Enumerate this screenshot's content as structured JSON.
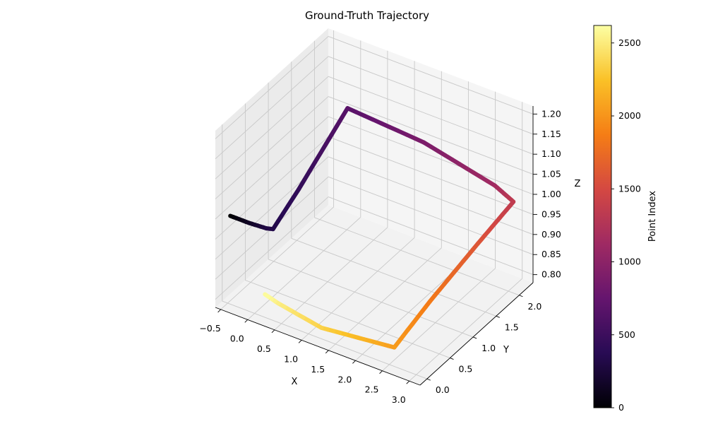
{
  "chart_data": {
    "type": "line",
    "title": "Ground-Truth Trajectory",
    "xlabel": "X",
    "ylabel": "Y",
    "zlabel": "Z",
    "xticks": [
      "−0.5",
      "0.0",
      "0.5",
      "1.0",
      "1.5",
      "2.0",
      "2.5",
      "3.0"
    ],
    "yticks": [
      "0.0",
      "0.5",
      "1.0",
      "1.5",
      "2.0"
    ],
    "zticks": [
      "0.80",
      "0.85",
      "0.90",
      "0.95",
      "1.00",
      "1.05",
      "1.10",
      "1.15",
      "1.20"
    ],
    "xlim": [
      -0.6,
      3.2
    ],
    "ylim": [
      -0.15,
      2.3
    ],
    "zlim": [
      0.78,
      1.22
    ],
    "colorbar": {
      "label": "Point Index",
      "colormap": "inferno",
      "ticks": [
        "0",
        "500",
        "1000",
        "1500",
        "2000",
        "2500"
      ],
      "range": [
        0,
        2620
      ]
    },
    "trajectory": [
      {
        "index": 0,
        "x": -0.45,
        "y": 0.0,
        "z": 1.0
      },
      {
        "index": 150,
        "x": -0.1,
        "y": 0.0,
        "z": 1.0
      },
      {
        "index": 300,
        "x": 0.2,
        "y": 0.02,
        "z": 1.0
      },
      {
        "index": 330,
        "x": 0.3,
        "y": 0.05,
        "z": 1.0
      },
      {
        "index": 450,
        "x": 0.35,
        "y": 0.55,
        "z": 1.05
      },
      {
        "index": 600,
        "x": 0.4,
        "y": 1.2,
        "z": 1.12
      },
      {
        "index": 680,
        "x": 0.4,
        "y": 1.55,
        "z": 1.15
      },
      {
        "index": 900,
        "x": 1.6,
        "y": 1.8,
        "z": 1.1
      },
      {
        "index": 1150,
        "x": 2.75,
        "y": 2.0,
        "z": 1.03
      },
      {
        "index": 1350,
        "x": 3.05,
        "y": 2.05,
        "z": 1.0
      },
      {
        "index": 1600,
        "x": 2.9,
        "y": 1.45,
        "z": 0.95
      },
      {
        "index": 1850,
        "x": 2.7,
        "y": 0.65,
        "z": 0.88
      },
      {
        "index": 2050,
        "x": 2.55,
        "y": 0.05,
        "z": 0.82
      },
      {
        "index": 2350,
        "x": 1.2,
        "y": 0.05,
        "z": 0.8
      },
      {
        "index": 2520,
        "x": 0.4,
        "y": 0.05,
        "z": 0.82
      },
      {
        "index": 2620,
        "x": 0.15,
        "y": 0.05,
        "z": 0.83
      }
    ]
  }
}
